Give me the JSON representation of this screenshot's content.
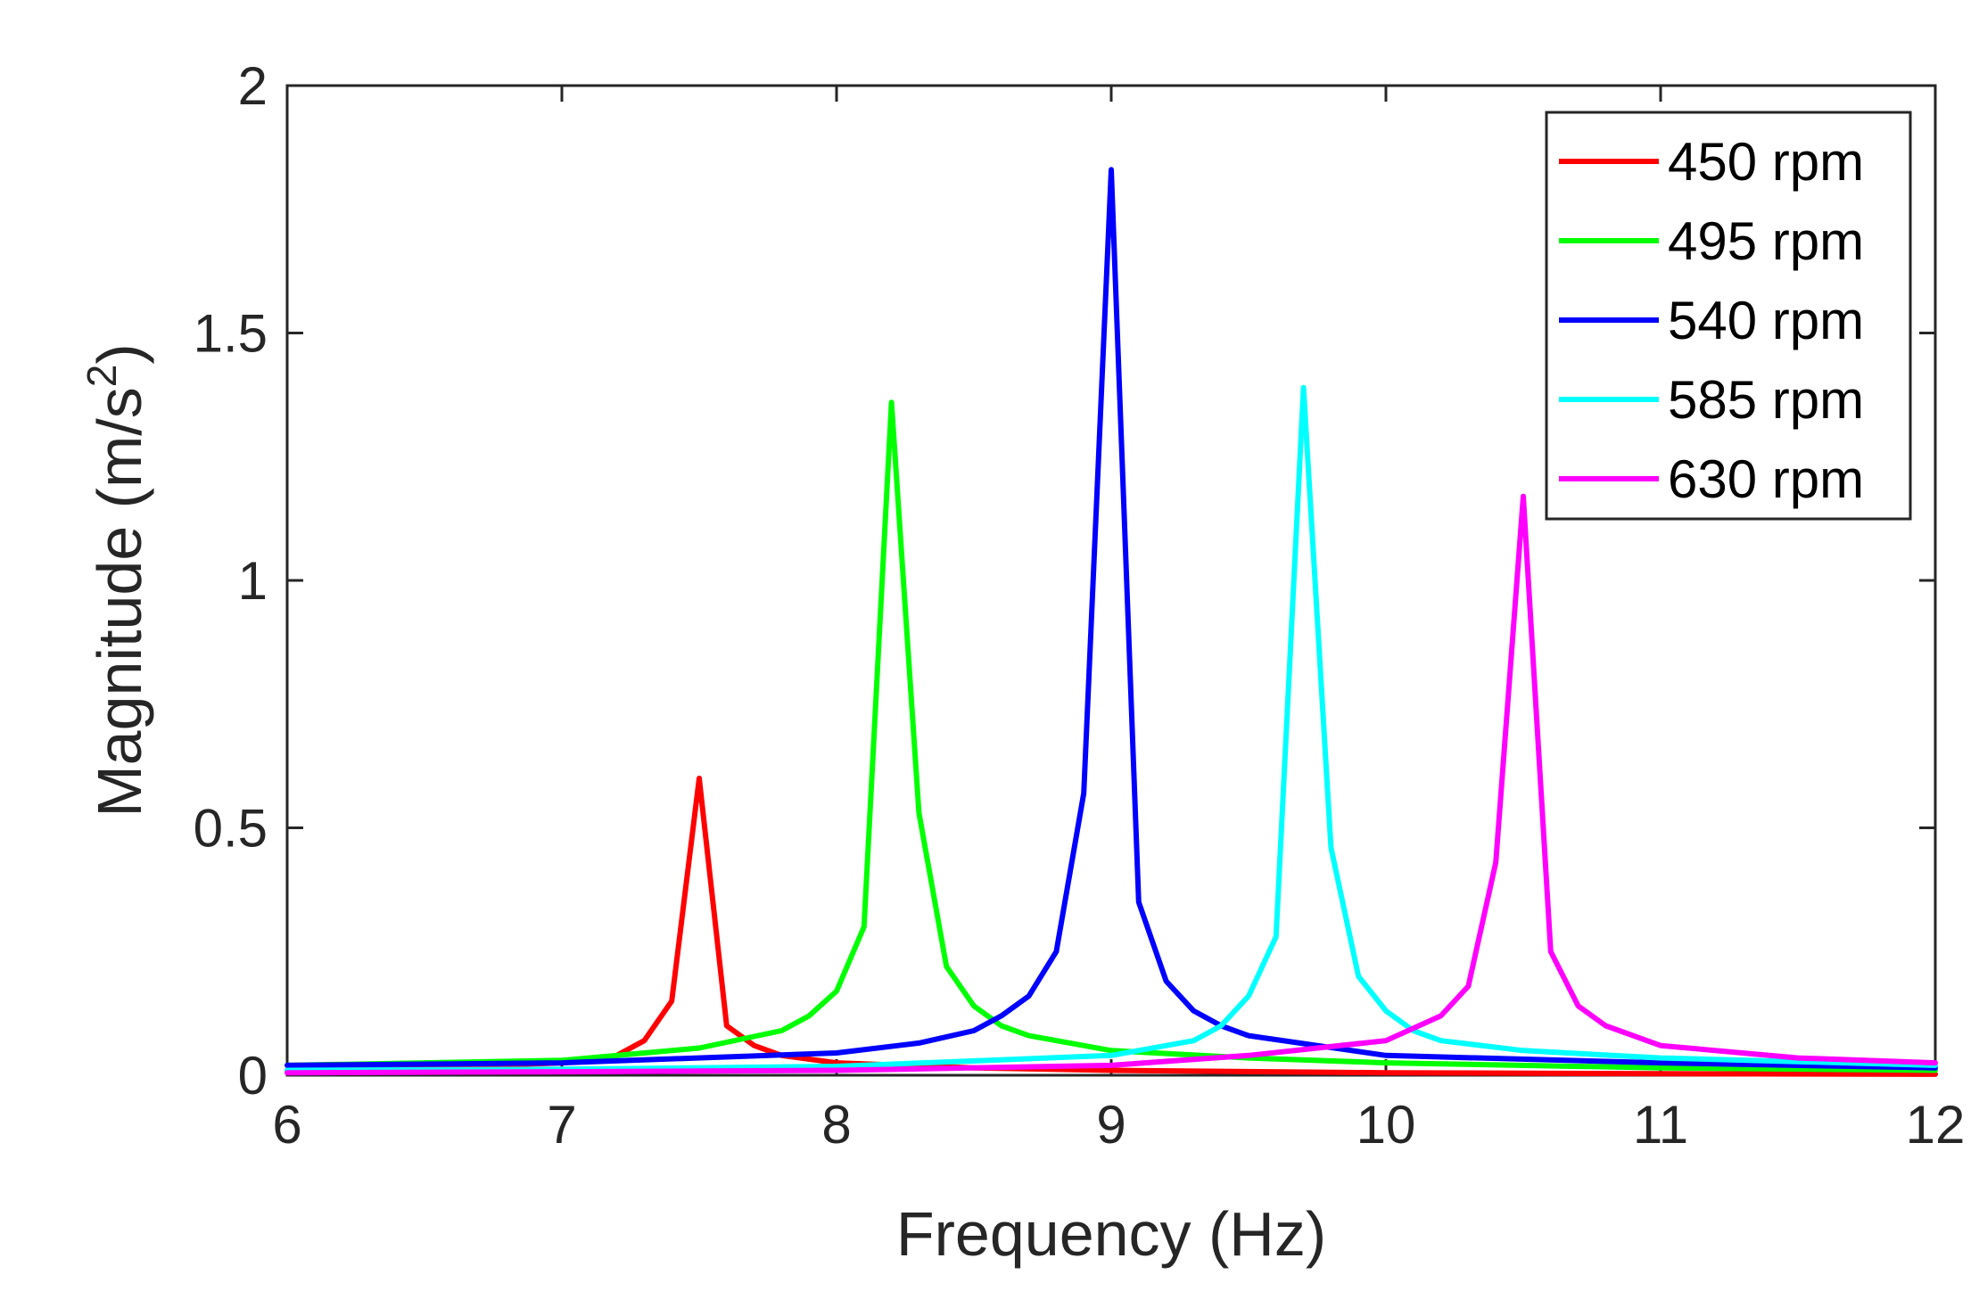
{
  "chart_data": {
    "type": "line",
    "title": "",
    "xlabel": "Frequency (Hz)",
    "ylabel_text": "Magnitude (m/s",
    "ylabel_superscript": "2",
    "ylabel_close": ")",
    "xlim": [
      6,
      12
    ],
    "ylim": [
      0,
      2
    ],
    "xticks": [
      6,
      7,
      8,
      9,
      10,
      11,
      12
    ],
    "xtick_labels": [
      "6",
      "7",
      "8",
      "9",
      "10",
      "11",
      "12"
    ],
    "yticks": [
      0,
      0.5,
      1,
      1.5,
      2
    ],
    "ytick_labels": [
      "0",
      "0.5",
      "1",
      "1.5",
      "2"
    ],
    "grid": false,
    "legend_position": "top-right",
    "series": [
      {
        "name": "450 rpm",
        "color": "#ff0000",
        "x": [
          6.0,
          6.5,
          7.0,
          7.2,
          7.3,
          7.4,
          7.5,
          7.6,
          7.7,
          7.8,
          8.0,
          8.5,
          9.0,
          10.0,
          11.0,
          12.0
        ],
        "y": [
          0.01,
          0.015,
          0.025,
          0.04,
          0.07,
          0.15,
          0.6,
          0.1,
          0.06,
          0.04,
          0.025,
          0.015,
          0.01,
          0.005,
          0.003,
          0.002
        ]
      },
      {
        "name": "495 rpm",
        "color": "#00ff00",
        "x": [
          6.0,
          6.5,
          7.0,
          7.5,
          7.8,
          7.9,
          8.0,
          8.1,
          8.2,
          8.3,
          8.4,
          8.5,
          8.6,
          8.7,
          9.0,
          9.5,
          10.0,
          11.0,
          12.0
        ],
        "y": [
          0.02,
          0.025,
          0.03,
          0.055,
          0.09,
          0.12,
          0.17,
          0.3,
          1.36,
          0.53,
          0.22,
          0.14,
          0.1,
          0.08,
          0.05,
          0.035,
          0.025,
          0.015,
          0.01
        ]
      },
      {
        "name": "540 rpm",
        "color": "#0000ff",
        "x": [
          6.0,
          7.0,
          8.0,
          8.3,
          8.5,
          8.6,
          8.7,
          8.8,
          8.9,
          9.0,
          9.1,
          9.2,
          9.3,
          9.4,
          9.5,
          10.0,
          11.0,
          12.0
        ],
        "y": [
          0.02,
          0.025,
          0.045,
          0.065,
          0.09,
          0.12,
          0.16,
          0.25,
          0.57,
          1.83,
          0.35,
          0.19,
          0.13,
          0.1,
          0.08,
          0.04,
          0.025,
          0.015
        ]
      },
      {
        "name": "585 rpm",
        "color": "#00ffff",
        "x": [
          6.0,
          7.0,
          8.0,
          9.0,
          9.3,
          9.4,
          9.5,
          9.6,
          9.7,
          9.8,
          9.9,
          10.0,
          10.1,
          10.2,
          10.5,
          11.0,
          12.0
        ],
        "y": [
          0.01,
          0.012,
          0.018,
          0.04,
          0.07,
          0.1,
          0.16,
          0.28,
          1.39,
          0.46,
          0.2,
          0.13,
          0.09,
          0.07,
          0.05,
          0.035,
          0.02
        ]
      },
      {
        "name": "630 rpm",
        "color": "#ff00ff",
        "x": [
          6.0,
          7.0,
          8.0,
          9.0,
          9.5,
          10.0,
          10.2,
          10.3,
          10.4,
          10.5,
          10.6,
          10.7,
          10.8,
          10.9,
          11.0,
          11.5,
          12.0
        ],
        "y": [
          0.005,
          0.007,
          0.01,
          0.02,
          0.04,
          0.07,
          0.12,
          0.18,
          0.43,
          1.17,
          0.25,
          0.14,
          0.1,
          0.08,
          0.06,
          0.035,
          0.025
        ]
      }
    ]
  }
}
